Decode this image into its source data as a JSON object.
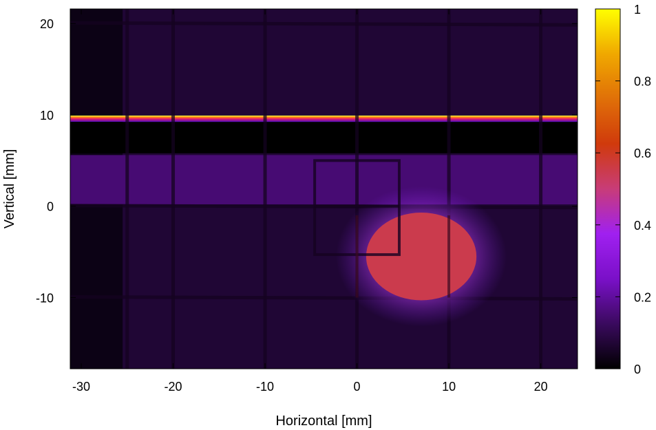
{
  "chart_data": {
    "type": "heatmap",
    "title": "",
    "xlabel": "Horizontal [mm]",
    "ylabel": "Vertical [mm]",
    "xlim": [
      -31.2,
      24.0
    ],
    "ylim": [
      -17.8,
      21.6
    ],
    "x_ticks": [
      -30,
      -20,
      -10,
      0,
      10,
      20
    ],
    "y_ticks": [
      -10,
      0,
      10,
      20
    ],
    "colorbar": {
      "range": [
        0,
        1
      ],
      "ticks": [
        0,
        0.2,
        0.4,
        0.6,
        0.8,
        1
      ],
      "tick_labels": [
        "0",
        "0.2",
        "0.4",
        "0.6",
        "0.8",
        "1"
      ],
      "palette": [
        "#000000",
        "#3a0a5e",
        "#7a10c8",
        "#a020f0",
        "#c83c78",
        "#d03a0c",
        "#e07008",
        "#f0a800",
        "#ffff00"
      ]
    },
    "background_level": 0.07,
    "grid_lines": {
      "vertical_x": [
        -25,
        -20,
        -10,
        0,
        10,
        20
      ],
      "horizontal_y": [
        -10,
        0,
        20
      ]
    },
    "features": [
      {
        "name": "horizontal hot stripe",
        "y": 9.7,
        "x_range": [
          -31.2,
          24.0
        ],
        "peak": 1.0
      },
      {
        "name": "dark band",
        "y_range": [
          5.8,
          9.2
        ],
        "level": 0.0
      },
      {
        "name": "bright band",
        "y_range": [
          0.2,
          5.6
        ],
        "level": 0.15
      },
      {
        "name": "beam spot",
        "center": [
          7,
          -5.5
        ],
        "radius_x": 6.0,
        "radius_y": 4.8,
        "peak": 0.55
      },
      {
        "name": "shadow rectangle",
        "x_range": [
          -4.6,
          4.6
        ],
        "y_range": [
          -5.3,
          5.0
        ]
      }
    ]
  }
}
